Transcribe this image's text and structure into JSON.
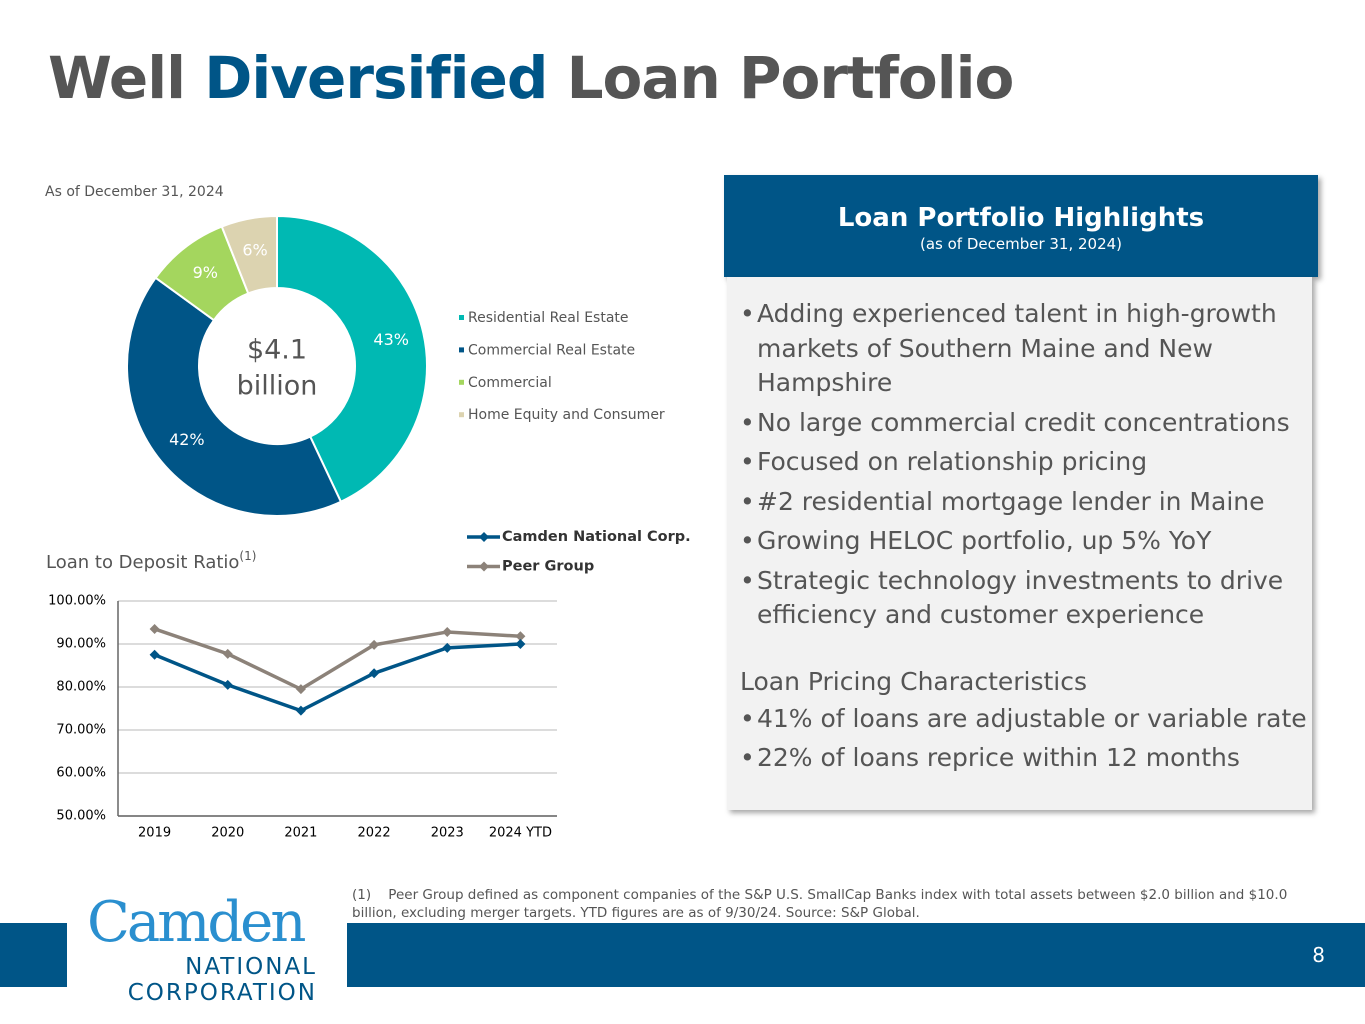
{
  "title": {
    "before": "Well",
    "highlight": "Diversified",
    "after": "Loan Portfolio"
  },
  "chart_data": [
    {
      "type": "donut",
      "subtitle": "As of December 31, 2024",
      "center_label": [
        "$4.1",
        "billion"
      ],
      "categories": [
        "Residential Real Estate",
        "Commercial Real Estate",
        "Commercial",
        "Home Equity and Consumer"
      ],
      "values": [
        43,
        42,
        9,
        6
      ],
      "value_labels": [
        "43%",
        "42%",
        "9%",
        "6%"
      ],
      "colors": [
        "#00b9b3",
        "#005587",
        "#a4d65e",
        "#dcd3b0"
      ]
    },
    {
      "type": "line",
      "title": "Loan to Deposit Ratio",
      "title_note": "(1)",
      "categories": [
        "2019",
        "2020",
        "2021",
        "2022",
        "2023",
        "2024 YTD"
      ],
      "series": [
        {
          "name": "Camden National Corp.",
          "color": "#005587",
          "values": [
            87.5,
            80.5,
            74.5,
            83.2,
            89.1,
            90.0
          ]
        },
        {
          "name": "Peer Group",
          "color": "#8c8279",
          "values": [
            93.5,
            87.7,
            79.5,
            89.8,
            92.8,
            91.8
          ]
        }
      ],
      "ylim": [
        50,
        100
      ],
      "yticks": [
        {
          "value": 50,
          "label": "50.00%"
        },
        {
          "value": 60,
          "label": "60.00%"
        },
        {
          "value": 70,
          "label": "70.00%"
        },
        {
          "value": 80,
          "label": "80.00%"
        },
        {
          "value": 90,
          "label": "90.00%"
        },
        {
          "value": 100,
          "label": "100.00%"
        }
      ],
      "grid": true
    }
  ],
  "highlights": {
    "title": "Loan Portfolio Highlights",
    "subtitle": "(as of December 31, 2024)",
    "bullets": [
      "Adding experienced talent in high-growth markets of Southern Maine and New Hampshire",
      "No large commercial credit concentrations",
      "Focused on relationship pricing",
      "#2 residential mortgage lender in Maine",
      "Growing HELOC portfolio, up 5% YoY",
      "Strategic technology investments to drive efficiency and customer experience"
    ],
    "section_title": "Loan Pricing Characteristics",
    "section_bullets": [
      "41% of loans are adjustable or variable rate",
      "22% of loans reprice within 12 months"
    ]
  },
  "footnote": {
    "marker": "(1)",
    "text": "Peer Group defined as component companies of the S&P U.S. SmallCap Banks index with total assets between $2.0 billion and $10.0 billion, excluding merger targets. YTD figures are as of 9/30/24. Source: S&P Global."
  },
  "logo": {
    "name": "Camden",
    "line1": "NATIONAL",
    "line2": "CORPORATION"
  },
  "page_number": "8"
}
